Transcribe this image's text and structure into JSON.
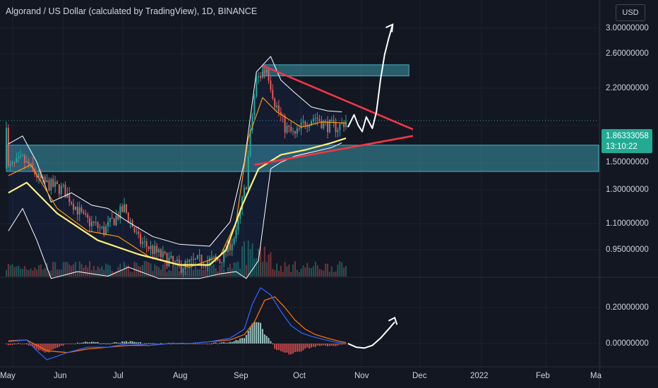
{
  "header": {
    "title": "Algorand / US Dollar (calculated by TradingView), 1D, BINANCE",
    "currency_button": "USD"
  },
  "last_price": {
    "value": "1.86333058",
    "countdown": "13:10:22"
  },
  "colors": {
    "background": "#131722",
    "up_candle": "#26a69a",
    "down_candle": "#ef5350",
    "zone_fill": "#4dd0e1",
    "triangle": "#f23645",
    "ma_slow": "#fff176",
    "ma_fast": "#ff9800",
    "bollinger": "#ffffff",
    "macd_line": "#2962ff",
    "signal_line": "#ff6d00",
    "drawing": "#ffffff"
  },
  "chart_data": [
    {
      "type": "candlestick",
      "title": "Algorand / US Dollar (calculated by TradingView), 1D, BINANCE",
      "y_scale": "log",
      "yticks": [
        "3.00000000",
        "2.60000000",
        "2.20000000",
        "1.86333058",
        "1.50000000",
        "1.30000000",
        "1.10000000",
        "0.95000000"
      ],
      "x_ticks": [
        "May",
        "Jun",
        "Jul",
        "Aug",
        "Sep",
        "Oct",
        "Nov",
        "Dec",
        "2022",
        "Feb",
        "Ma"
      ],
      "ylim": [
        0.82,
        3.2
      ],
      "grid": true,
      "close_path": [
        [
          1,
          1.45
        ],
        [
          8,
          1.52
        ],
        [
          18,
          1.35
        ],
        [
          28,
          1.3
        ],
        [
          38,
          1.12
        ],
        [
          48,
          1.05
        ],
        [
          58,
          1.18
        ],
        [
          65,
          1.0
        ],
        [
          75,
          0.93
        ],
        [
          85,
          0.87
        ],
        [
          95,
          0.9
        ],
        [
          105,
          0.9
        ],
        [
          113,
          1.03
        ],
        [
          118,
          1.35
        ],
        [
          123,
          2.3
        ],
        [
          128,
          2.45
        ],
        [
          132,
          2.05
        ],
        [
          137,
          1.8
        ],
        [
          142,
          1.72
        ],
        [
          147,
          1.85
        ],
        [
          152,
          1.9
        ],
        [
          157,
          1.82
        ],
        [
          163,
          1.8
        ],
        [
          167,
          1.86
        ]
      ],
      "ma_slow": [
        [
          1,
          1.28
        ],
        [
          10,
          1.35
        ],
        [
          25,
          1.15
        ],
        [
          45,
          1.0
        ],
        [
          65,
          0.93
        ],
        [
          85,
          0.88
        ],
        [
          100,
          0.88
        ],
        [
          108,
          0.95
        ],
        [
          116,
          1.2
        ],
        [
          124,
          1.45
        ],
        [
          135,
          1.56
        ],
        [
          147,
          1.6
        ],
        [
          160,
          1.66
        ],
        [
          167,
          1.7
        ]
      ],
      "ma_fast": [
        [
          1,
          1.4
        ],
        [
          12,
          1.48
        ],
        [
          25,
          1.18
        ],
        [
          40,
          1.05
        ],
        [
          55,
          1.02
        ],
        [
          70,
          0.92
        ],
        [
          90,
          0.87
        ],
        [
          105,
          0.92
        ],
        [
          113,
          1.1
        ],
        [
          119,
          1.7
        ],
        [
          126,
          2.1
        ],
        [
          133,
          1.95
        ],
        [
          145,
          1.8
        ],
        [
          155,
          1.85
        ],
        [
          167,
          1.84
        ]
      ],
      "bb_upper": [
        [
          1,
          1.65
        ],
        [
          8,
          1.72
        ],
        [
          15,
          1.5
        ],
        [
          22,
          1.22
        ],
        [
          32,
          1.28
        ],
        [
          42,
          1.2
        ],
        [
          50,
          1.18
        ],
        [
          60,
          1.1
        ],
        [
          72,
          1.02
        ],
        [
          85,
          0.98
        ],
        [
          100,
          0.97
        ],
        [
          110,
          1.1
        ],
        [
          117,
          1.5
        ],
        [
          123,
          2.4
        ],
        [
          130,
          2.6
        ],
        [
          135,
          2.3
        ],
        [
          142,
          2.15
        ],
        [
          150,
          2.0
        ],
        [
          158,
          1.96
        ],
        [
          165,
          1.95
        ]
      ],
      "bb_lower": [
        [
          1,
          1.05
        ],
        [
          8,
          1.18
        ],
        [
          15,
          1.0
        ],
        [
          22,
          0.82
        ],
        [
          35,
          0.85
        ],
        [
          50,
          0.83
        ],
        [
          60,
          0.87
        ],
        [
          75,
          0.82
        ],
        [
          95,
          0.82
        ],
        [
          105,
          0.84
        ],
        [
          113,
          0.85
        ],
        [
          118,
          0.82
        ],
        [
          124,
          0.9
        ],
        [
          130,
          1.45
        ],
        [
          135,
          1.5
        ],
        [
          142,
          1.55
        ],
        [
          150,
          1.58
        ],
        [
          160,
          1.62
        ],
        [
          165,
          1.66
        ]
      ],
      "zones": [
        {
          "day_start": 126,
          "day_end": 198,
          "price_low": 2.35,
          "price_high": 2.49
        },
        {
          "day_start": 0,
          "day_end": 300,
          "price_low": 1.43,
          "price_high": 1.64
        }
      ],
      "triangle": {
        "upper": [
          [
            126,
            2.48
          ],
          [
            200,
            1.78
          ]
        ],
        "lower": [
          [
            122,
            1.48
          ],
          [
            200,
            1.72
          ]
        ]
      },
      "projection": [
        [
          168,
          1.8
        ],
        [
          171,
          1.92
        ],
        [
          173,
          1.82
        ],
        [
          175,
          1.76
        ],
        [
          177,
          1.9
        ],
        [
          180,
          1.79
        ],
        [
          182,
          1.95
        ],
        [
          184,
          2.3
        ],
        [
          186,
          2.62
        ],
        [
          188,
          2.85
        ],
        [
          190,
          3.07
        ]
      ]
    },
    {
      "type": "macd",
      "yticks": [
        "0.20000000",
        "0.00000000"
      ],
      "ylim": [
        -0.1,
        0.32
      ],
      "macd_line": [
        [
          1,
          0.01
        ],
        [
          10,
          0.02
        ],
        [
          15,
          -0.04
        ],
        [
          20,
          -0.09
        ],
        [
          30,
          -0.05
        ],
        [
          40,
          -0.02
        ],
        [
          50,
          -0.02
        ],
        [
          60,
          0.0
        ],
        [
          70,
          -0.01
        ],
        [
          80,
          0.0
        ],
        [
          90,
          0.0
        ],
        [
          100,
          0.01
        ],
        [
          110,
          0.03
        ],
        [
          117,
          0.08
        ],
        [
          121,
          0.22
        ],
        [
          125,
          0.31
        ],
        [
          130,
          0.27
        ],
        [
          135,
          0.18
        ],
        [
          140,
          0.1
        ],
        [
          145,
          0.06
        ],
        [
          150,
          0.04
        ],
        [
          157,
          0.02
        ],
        [
          163,
          0.005
        ],
        [
          167,
          0.0
        ]
      ],
      "signal_line": [
        [
          1,
          0.015
        ],
        [
          10,
          0.02
        ],
        [
          20,
          -0.04
        ],
        [
          30,
          -0.05
        ],
        [
          40,
          -0.03
        ],
        [
          50,
          -0.02
        ],
        [
          60,
          -0.01
        ],
        [
          70,
          -0.01
        ],
        [
          80,
          0.0
        ],
        [
          90,
          0.0
        ],
        [
          100,
          0.01
        ],
        [
          110,
          0.02
        ],
        [
          117,
          0.05
        ],
        [
          122,
          0.12
        ],
        [
          127,
          0.24
        ],
        [
          132,
          0.26
        ],
        [
          137,
          0.2
        ],
        [
          142,
          0.13
        ],
        [
          147,
          0.08
        ],
        [
          152,
          0.05
        ],
        [
          158,
          0.03
        ],
        [
          163,
          0.015
        ],
        [
          167,
          0.005
        ]
      ],
      "projection": [
        [
          168,
          0.0
        ],
        [
          172,
          -0.02
        ],
        [
          176,
          -0.025
        ],
        [
          180,
          -0.01
        ],
        [
          184,
          0.03
        ],
        [
          188,
          0.08
        ],
        [
          191,
          0.12
        ]
      ]
    }
  ]
}
